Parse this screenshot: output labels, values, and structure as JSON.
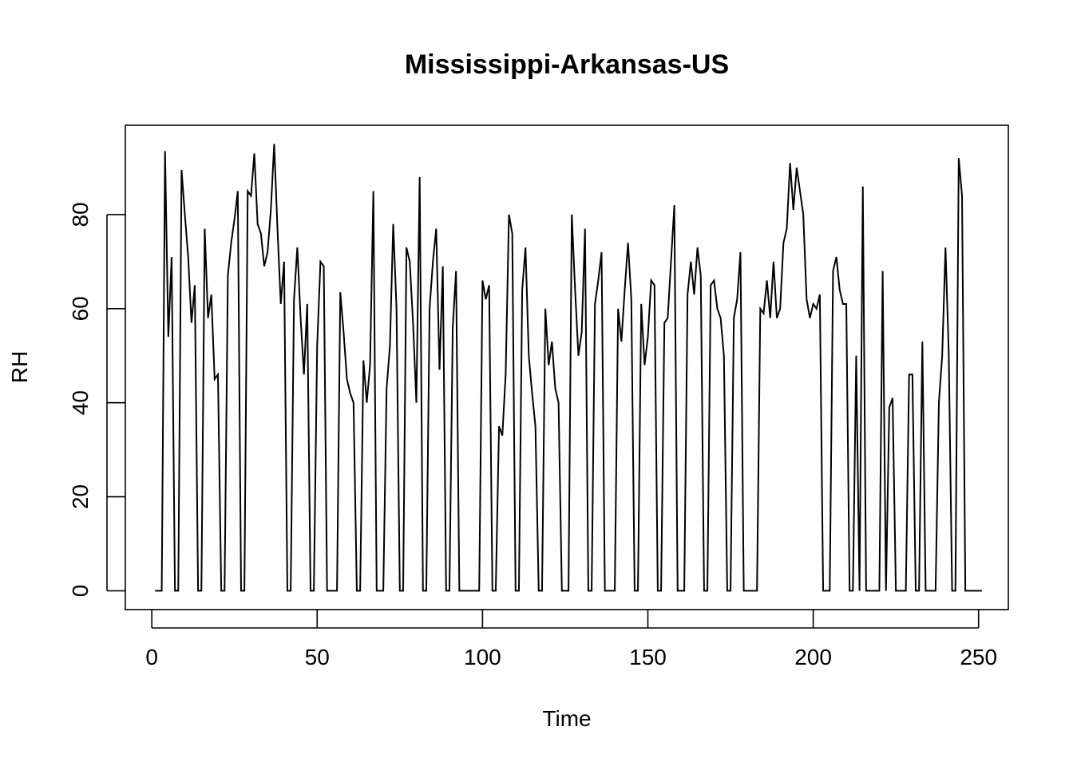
{
  "chart_data": {
    "type": "line",
    "title": "Mississippi-Arkansas-US",
    "xlabel": "Time",
    "ylabel": "RH",
    "xlim": [
      -8,
      259
    ],
    "ylim": [
      -4,
      99
    ],
    "x_ticks": [
      0,
      50,
      100,
      150,
      200,
      250
    ],
    "y_ticks": [
      0,
      20,
      40,
      60,
      80
    ],
    "x_tick_labels": [
      "0",
      "50",
      "100",
      "150",
      "200",
      "250"
    ],
    "y_tick_labels": [
      "0",
      "20",
      "40",
      "60",
      "80"
    ],
    "grid": false,
    "series": [
      {
        "color": "#000000",
        "x_start": 1,
        "values": [
          0,
          0,
          0,
          93.5,
          54,
          71,
          0,
          0,
          89.5,
          80,
          71,
          57,
          65,
          0,
          0,
          77,
          58,
          63,
          45,
          46,
          0,
          0,
          67,
          74,
          79,
          85,
          0,
          0,
          85,
          84,
          93,
          78,
          76,
          69,
          72,
          81,
          95,
          77,
          61,
          70,
          0,
          0,
          62,
          73,
          58,
          46,
          61,
          0,
          0,
          52,
          70,
          69,
          0,
          0,
          0,
          0,
          63.5,
          55,
          45,
          42,
          40,
          0,
          0,
          49,
          40,
          48,
          85,
          0,
          0,
          0,
          43,
          52,
          78,
          60,
          0,
          0,
          73,
          70,
          57,
          40,
          88,
          0,
          0,
          60,
          70,
          77,
          47,
          69,
          0,
          0,
          56,
          68,
          0,
          0,
          0,
          0,
          0,
          0,
          0,
          66,
          62,
          65,
          0,
          0,
          35,
          33,
          46,
          80,
          76,
          0,
          0,
          64,
          73,
          50,
          42,
          35,
          0,
          0,
          60,
          48,
          53,
          43,
          40,
          0,
          0,
          0,
          80,
          64,
          50,
          55,
          77,
          0,
          0,
          61,
          66,
          72,
          0,
          0,
          0,
          0,
          60,
          53,
          64,
          74,
          62,
          0,
          0,
          61,
          48,
          54,
          66,
          65,
          0,
          0,
          57,
          58,
          70,
          82,
          0,
          0,
          0,
          63,
          70,
          63,
          73,
          67,
          0,
          0,
          65,
          66,
          60,
          58,
          50,
          0,
          0,
          58,
          62,
          72,
          0,
          0,
          0,
          0,
          0,
          60,
          59,
          66,
          58,
          70,
          58,
          60,
          74,
          77,
          91,
          81,
          90,
          85,
          80,
          62,
          58,
          61,
          60,
          63,
          0,
          0,
          0,
          68,
          71,
          64,
          61,
          61,
          0,
          0,
          50,
          0,
          86,
          0,
          0,
          0,
          0,
          0,
          68,
          0,
          39,
          41,
          0,
          0,
          0,
          0,
          46,
          46,
          0,
          0,
          53,
          0,
          0,
          0,
          0,
          40,
          50,
          73,
          50,
          0,
          0,
          92,
          84,
          0,
          0,
          0,
          0,
          0,
          0
        ]
      }
    ]
  }
}
